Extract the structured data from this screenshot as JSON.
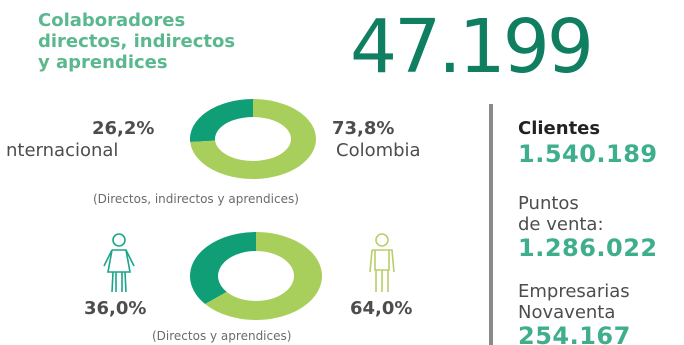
{
  "header": {
    "title_lines": [
      "Colaboradores",
      "directos, indirectos",
      "y aprendices"
    ],
    "total": "47.199"
  },
  "chart_data": [
    {
      "type": "pie",
      "title": "",
      "caption": "(Directos, indirectos y aprendices)",
      "slices": [
        {
          "label": "nternacional",
          "value": 26.2,
          "value_label": "26,2%",
          "color": "#0f9e76"
        },
        {
          "label": "Colombia",
          "value": 73.8,
          "value_label": "73,8%",
          "color": "#a8cf5b"
        }
      ]
    },
    {
      "type": "pie",
      "title": "",
      "caption": "(Directos y aprendices)",
      "slices": [
        {
          "label": "",
          "icon": "woman-icon",
          "value": 36.0,
          "value_label": "36,0%",
          "color": "#0f9e76"
        },
        {
          "label": "",
          "icon": "man-icon",
          "value": 64.0,
          "value_label": "64,0%",
          "color": "#a8cf5b"
        }
      ]
    }
  ],
  "stats": {
    "clientes": {
      "label": "Clientes",
      "value": "1.540.189"
    },
    "puntos": {
      "label_line1": "Puntos",
      "label_line2": "de venta:",
      "value": "1.286.022"
    },
    "empresarias": {
      "label_line1": "Empresarias",
      "label_line2": "Novaventa",
      "value": "254.167"
    }
  },
  "colors": {
    "dark_green": "#0f9e76",
    "light_green": "#a8cf5b",
    "title_green": "#5bb88e",
    "number_green": "#3fae8c",
    "woman_icon": "#1aa58a",
    "man_icon": "#b6cf6a"
  }
}
